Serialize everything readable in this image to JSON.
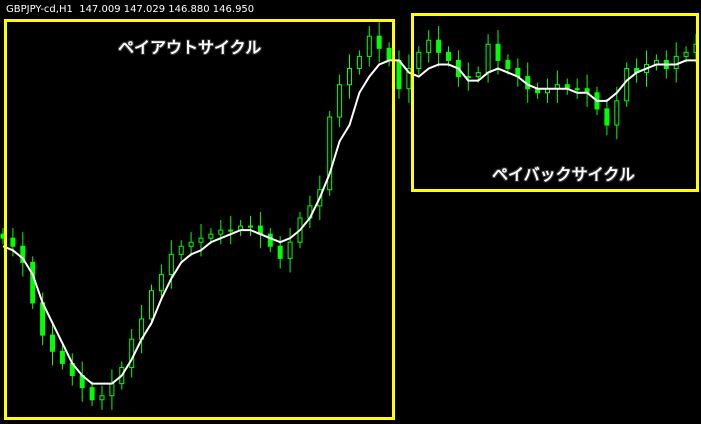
{
  "header": {
    "symbol": "GBPJPY-cd,H1",
    "ohlc": "147.009 147.029 146.880 146.950"
  },
  "annotations": {
    "payout": "ペイアウトサイクル",
    "payback": "ペイバックサイクル"
  },
  "colors": {
    "background": "#000000",
    "candle": "#00ff00",
    "ma": "#ffffff",
    "box": "#ffff00"
  },
  "chart_data": {
    "type": "candlestick",
    "title": "",
    "note_scale": "relative price level (no axis printed)",
    "ylim": [
      0,
      101
    ],
    "closes": [
      46,
      44,
      40,
      30,
      22,
      18,
      15,
      12,
      9,
      6,
      7,
      10,
      14,
      21,
      26,
      33,
      37,
      42,
      44,
      45,
      46,
      47,
      48,
      48,
      49,
      49,
      47,
      44,
      41,
      45,
      51,
      54,
      58,
      76,
      84,
      88,
      91,
      96,
      93,
      90,
      83,
      88,
      92,
      95,
      92,
      90,
      86,
      86,
      87,
      94,
      90,
      88,
      86,
      83,
      82,
      83,
      84,
      83,
      83,
      82,
      78,
      74,
      80,
      88,
      87,
      89,
      90,
      88,
      91,
      92,
      94
    ],
    "moving_average": [
      44,
      43,
      41,
      37,
      30,
      25,
      20,
      15,
      12,
      10,
      10,
      10,
      12,
      16,
      21,
      25,
      31,
      36,
      40,
      42,
      43,
      45,
      46,
      47,
      48,
      48,
      47,
      46,
      45,
      46,
      48,
      51,
      56,
      62,
      70,
      74,
      82,
      86,
      89,
      90,
      90,
      87,
      86,
      88,
      89,
      89,
      88,
      85,
      85,
      87,
      88,
      87,
      86,
      84,
      83,
      83,
      83,
      83,
      82,
      82,
      80,
      80,
      82,
      85,
      87,
      88,
      89,
      89,
      89,
      90,
      90
    ]
  }
}
